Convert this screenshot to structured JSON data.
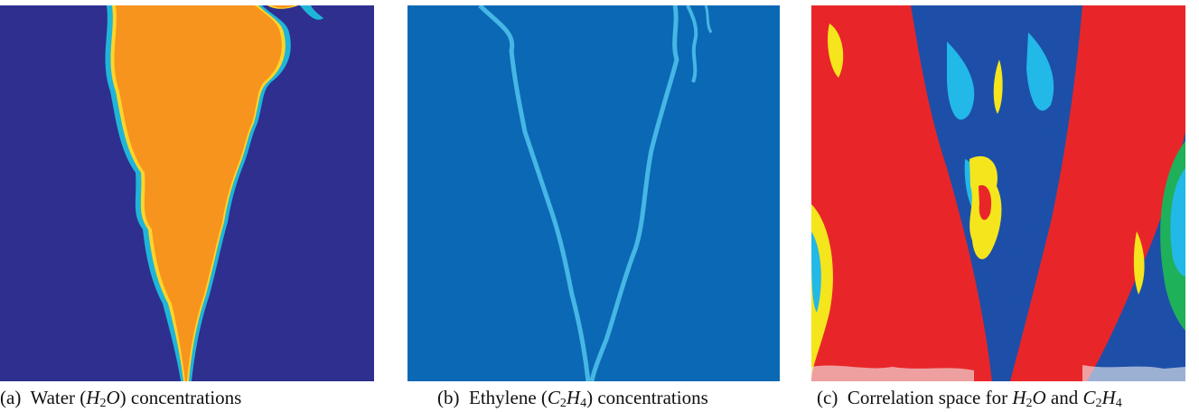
{
  "figure": {
    "panels": [
      {
        "id": "a",
        "caption": {
          "tag": "(a)",
          "before": "Water (",
          "formula": [
            {
              "t": "H"
            },
            {
              "s": "2"
            },
            {
              "t": "O"
            }
          ],
          "after": ") concentrations"
        },
        "colors": {
          "background": "#2e2f8f",
          "plume": "#f7941d",
          "edge_outer": "#1fb5d8",
          "edge_inner": "#ffd42a"
        }
      },
      {
        "id": "b",
        "caption": {
          "tag": "(b)",
          "before": "Ethylene (",
          "formula": [
            {
              "t": "C"
            },
            {
              "s": "2"
            },
            {
              "t": "H"
            },
            {
              "s": "4"
            }
          ],
          "after": ") concentrations"
        },
        "colors": {
          "background": "#0a68b4",
          "edge": "#46b6e4"
        }
      },
      {
        "id": "c",
        "caption": {
          "tag": "(c)",
          "before": "Correlation space for ",
          "formula": [
            {
              "t": "H"
            },
            {
              "s": "2"
            },
            {
              "t": "O"
            }
          ],
          "middle": " and ",
          "formula2": [
            {
              "t": "C"
            },
            {
              "s": "2"
            },
            {
              "t": "H"
            },
            {
              "s": "4"
            }
          ],
          "after": ""
        },
        "colors": {
          "red": "#e8262a",
          "blue": "#1d4fa8",
          "cyan": "#22b8e8",
          "yellow": "#f5e51c",
          "green": "#1fb05a",
          "white": "#f2f2f2"
        }
      }
    ]
  }
}
